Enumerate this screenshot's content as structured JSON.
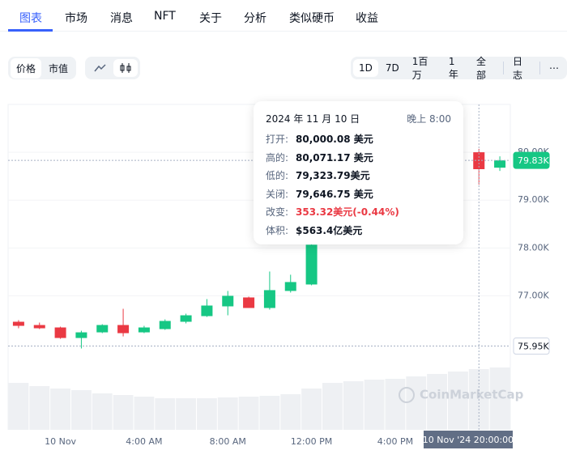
{
  "tabs": [
    "图表",
    "市场",
    "消息",
    "NFT",
    "关于",
    "分析",
    "类似硬币",
    "收益"
  ],
  "toolbar": {
    "metric": [
      "价格",
      "市值"
    ],
    "ranges": [
      "1D",
      "7D",
      "1百万",
      "1年",
      "全部"
    ],
    "log": "日志",
    "more": "⋯"
  },
  "tooltip": {
    "date": "2024 年 11 月 10 日",
    "time": "晚上 8:00",
    "rows": [
      [
        "打开:",
        "80,000.08 美元"
      ],
      [
        "高的:",
        "80,071.17 美元"
      ],
      [
        "低的:",
        "79,323.79美元"
      ],
      [
        "关闭:",
        "79,646.75 美元"
      ],
      [
        "改变:",
        "353.32美元(-0.44%)"
      ],
      [
        "体积:",
        "$563.4亿美元"
      ]
    ]
  },
  "chart_data": {
    "type": "candlestick",
    "categories": [
      null,
      null,
      "10 Nov",
      null,
      null,
      null,
      "4:00 AM",
      null,
      null,
      null,
      "8:00 AM",
      null,
      null,
      null,
      "12:00 PM",
      null,
      null,
      null,
      "4:00 PM",
      null,
      null,
      null,
      null,
      null
    ],
    "open": [
      76458,
      76390,
      76339,
      76119,
      76237,
      76390,
      76237,
      76305,
      76458,
      76576,
      76780,
      76966,
      76746,
      77102,
      77237,
      null,
      null,
      null,
      null,
      null,
      null,
      null,
      80000.08,
      79678
    ],
    "high": [
      76492,
      76441,
      76356,
      76271,
      76407,
      76729,
      76373,
      76508,
      76627,
      76932,
      77102,
      76983,
      77508,
      77441,
      78119,
      null,
      null,
      null,
      null,
      null,
      null,
      null,
      80071.17,
      79915
    ],
    "low": [
      76322,
      76305,
      76102,
      75900,
      76220,
      76152,
      76220,
      76288,
      76424,
      76559,
      76593,
      76746,
      76712,
      77068,
      77220,
      null,
      null,
      null,
      null,
      null,
      null,
      null,
      79323.79,
      79610
    ],
    "close": [
      76373,
      76322,
      76119,
      76237,
      76390,
      76220,
      76339,
      76475,
      76593,
      76797,
      77000,
      76746,
      77119,
      77288,
      78068,
      null,
      null,
      null,
      null,
      null,
      null,
      null,
      79646.75,
      79831
    ],
    "volume": [
      58,
      54,
      51,
      49,
      45,
      43,
      41,
      39,
      39,
      39,
      40,
      41,
      42,
      44,
      51,
      58,
      60,
      62,
      63,
      66,
      69,
      72,
      75,
      77
    ],
    "up_color": "#16c784",
    "down_color": "#ea3943",
    "volume_color": "#eef0f3",
    "ylim": [
      74200,
      81000
    ],
    "yticks": [
      {
        "value": 77000,
        "label": "77.00K"
      },
      {
        "value": 78000,
        "label": "78.00K"
      },
      {
        "value": 79000,
        "label": "79.00K"
      },
      {
        "value": 80000,
        "label": "80.00K"
      }
    ],
    "grid": true,
    "price_marker": {
      "value": 79830,
      "label": "79.83K"
    },
    "low_marker": {
      "value": 75950,
      "label": "75.95K"
    },
    "crosshair_label": "10 Nov '24 20:00:00",
    "watermark": "CoinMarketCap"
  }
}
